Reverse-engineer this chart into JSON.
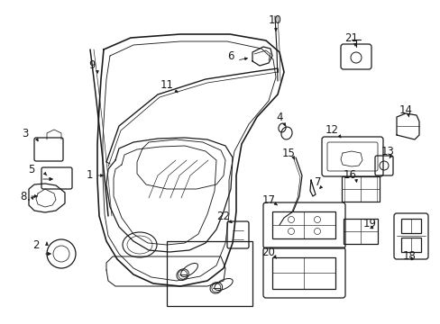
{
  "background_color": "#ffffff",
  "figsize": [
    4.89,
    3.6
  ],
  "dpi": 100,
  "line_color": "#1a1a1a",
  "line_width": 0.9,
  "label_fontsize": 8.5
}
